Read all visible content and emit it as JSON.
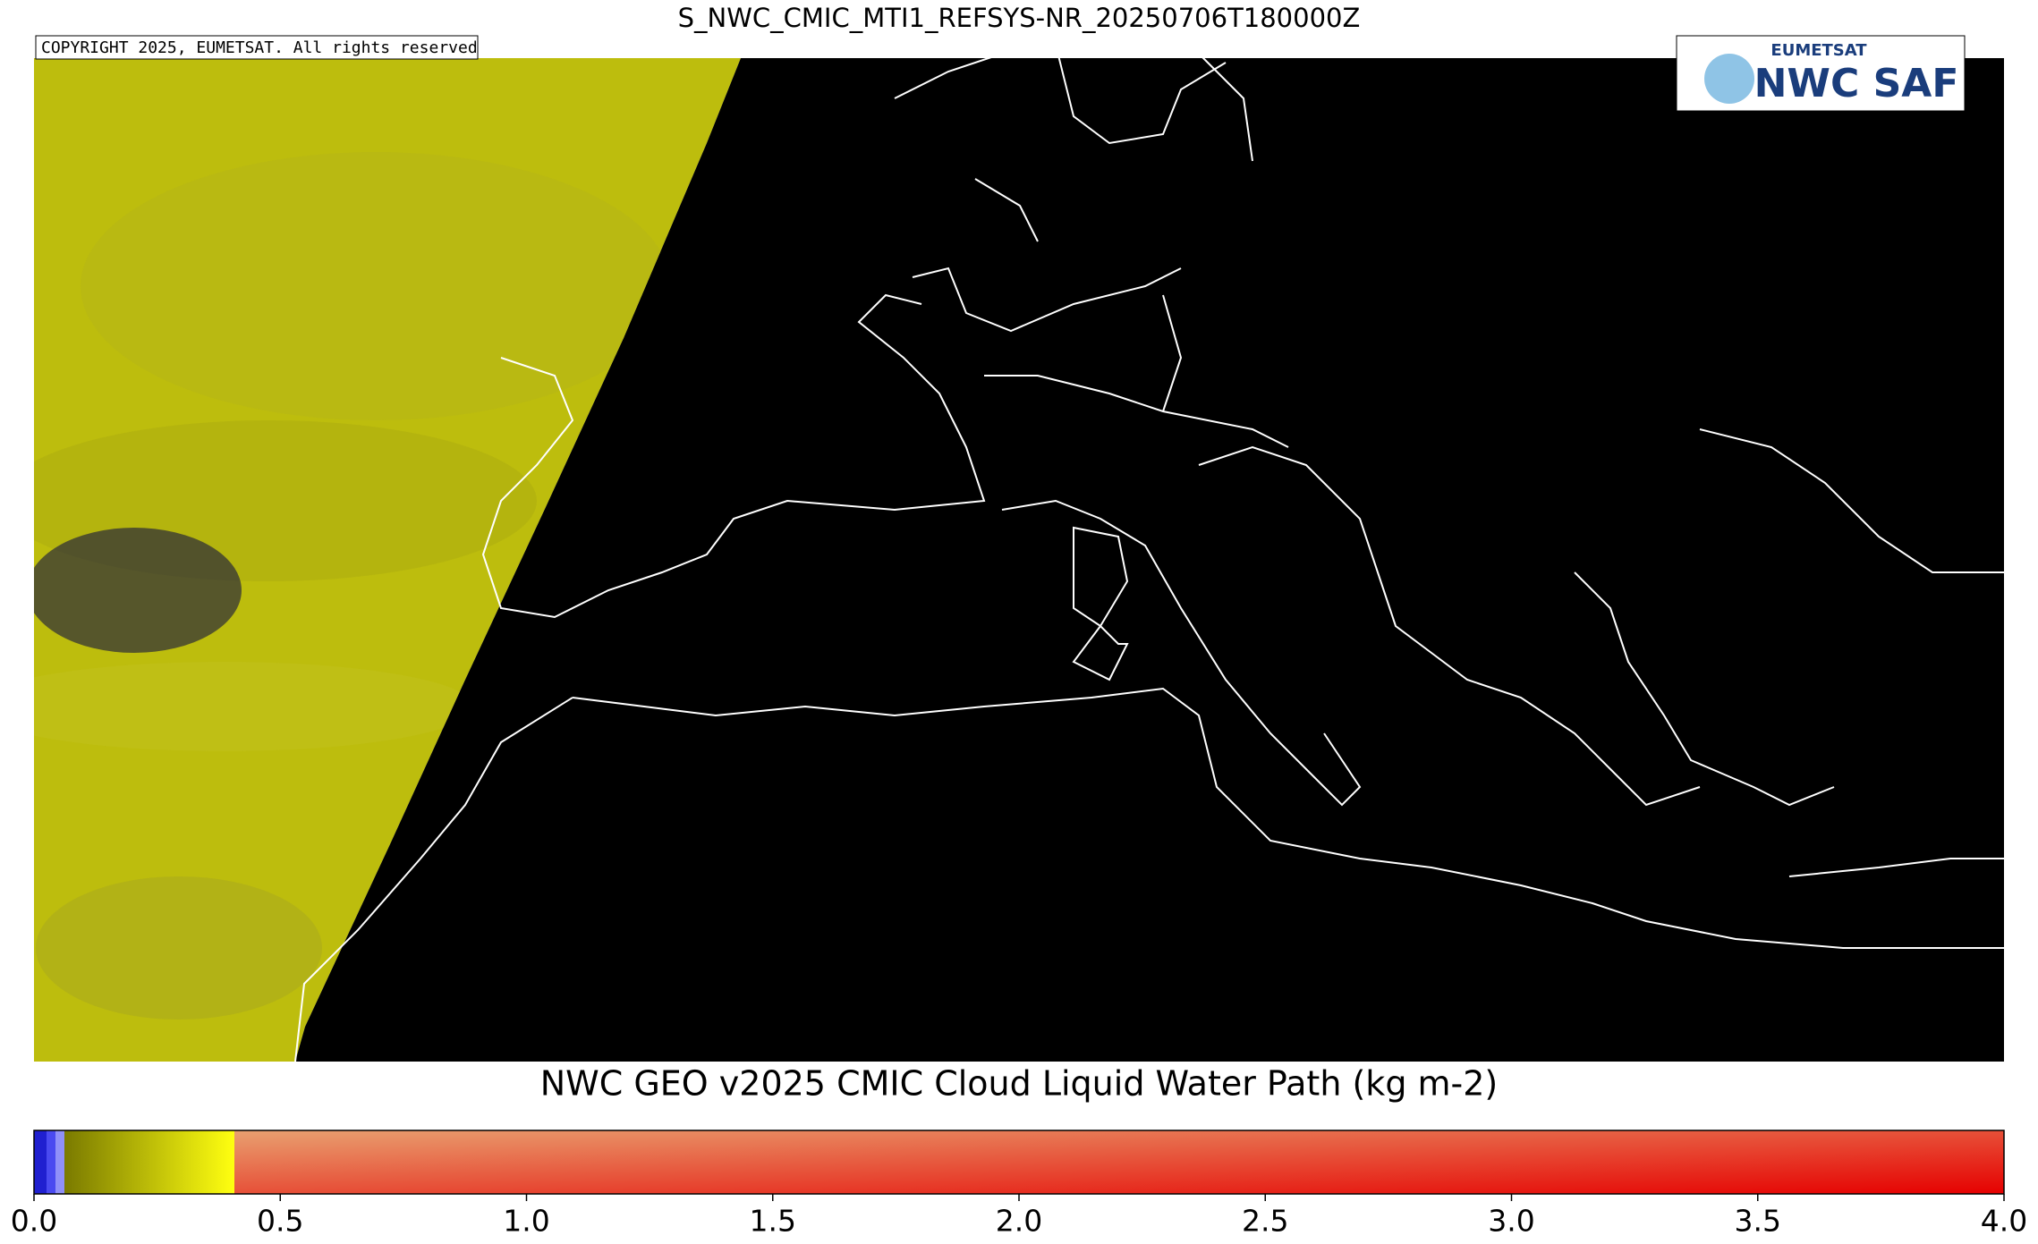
{
  "header": {
    "title": "S_NWC_CMIC_MTI1_REFSYS-NR_20250706T180000Z"
  },
  "map": {
    "copyright": "COPYRIGHT 2025, EUMETSAT. All rights reserved",
    "logo": {
      "org": "EUMETSAT",
      "product": "NWC SAF"
    }
  },
  "colorbar": {
    "title": "NWC GEO v2025 CMIC Cloud Liquid Water Path (kg m-2)",
    "lim": [
      0,
      4
    ],
    "ticks": [
      {
        "value": 0,
        "label": "0.0"
      },
      0.5,
      {
        "value": 1,
        "label": "1.0"
      },
      1.5,
      {
        "value": 2,
        "label": "2.0"
      },
      2.5,
      {
        "value": 3,
        "label": "3.0"
      },
      3.5,
      {
        "value": 4,
        "label": "4.0"
      }
    ]
  }
}
